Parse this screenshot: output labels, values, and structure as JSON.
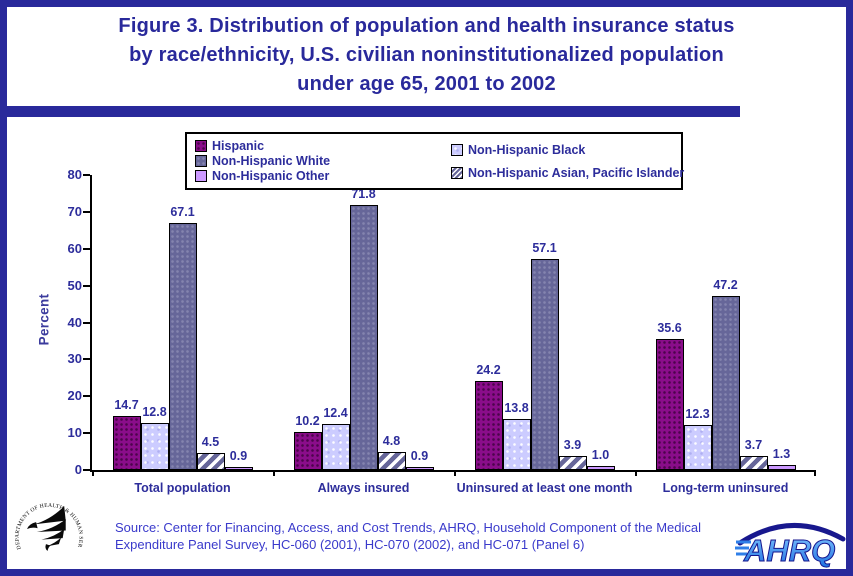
{
  "window": {
    "background": "#FFFFFF",
    "border_color": "#29299B"
  },
  "header": {
    "title_lines": [
      "Figure 3. Distribution of population and health insurance status",
      "by race/ethnicity, U.S. civilian noninstitutionalized population",
      "under age 65, 2001 to 2002"
    ]
  },
  "chart_data": {
    "type": "bar",
    "title": "Figure 3. Distribution of population and health insurance status by race/ethnicity, U.S. civilian noninstitutionalized population under age 65, 2001 to 2002",
    "xlabel": "",
    "ylabel": "Percent",
    "ylim": [
      0,
      80
    ],
    "yticks": [
      0,
      10,
      20,
      30,
      40,
      50,
      60,
      70,
      80
    ],
    "grid": false,
    "value_label_format": "one-decimal",
    "legend_position": "top-inside-box",
    "categories": [
      "Total population",
      "Always insured",
      "Uninsured at least one month",
      "Long-term uninsured"
    ],
    "series": [
      {
        "name": "Hispanic",
        "color": "#8A0D8A",
        "pattern": "speckled-solid",
        "values": [
          14.7,
          10.2,
          24.2,
          35.6
        ]
      },
      {
        "name": "Non-Hispanic Black",
        "color": "#CCCCFF",
        "pattern": "speckled-light",
        "values": [
          12.8,
          12.4,
          13.8,
          12.3
        ]
      },
      {
        "name": "Non-Hispanic White",
        "color": "#666699",
        "pattern": "speckled-solid",
        "values": [
          67.1,
          71.8,
          57.1,
          47.2
        ]
      },
      {
        "name": "Non-Hispanic Asian, Pacific Islander",
        "color": "#666699",
        "pattern": "diagonal-hatch-on-white",
        "values": [
          4.5,
          4.8,
          3.9,
          3.7
        ]
      },
      {
        "name": "Non-Hispanic Other",
        "color": "#CC99FF",
        "pattern": "solid",
        "values": [
          0.9,
          0.9,
          1.0,
          1.3
        ]
      }
    ],
    "legend_layout_columns": [
      [
        0,
        2,
        4
      ],
      [
        1,
        3
      ]
    ]
  },
  "footer": {
    "source_lines": [
      "Source: Center for Financing, Access, and Cost Trends, AHRQ, Household Component of the Medical",
      "Expenditure Panel Survey, HC-060 (2001), HC-070 (2002), and HC-071 (Panel 6)"
    ]
  },
  "logos": {
    "hhs_circle_text": "DEPARTMENT OF HEALTH & HUMAN SERVICES • USA",
    "ahrq_text": "AHRQ"
  },
  "text_colors": {
    "title": "#29299B",
    "chart_text": "#2D2D9B",
    "source": "#3A3ACB"
  }
}
